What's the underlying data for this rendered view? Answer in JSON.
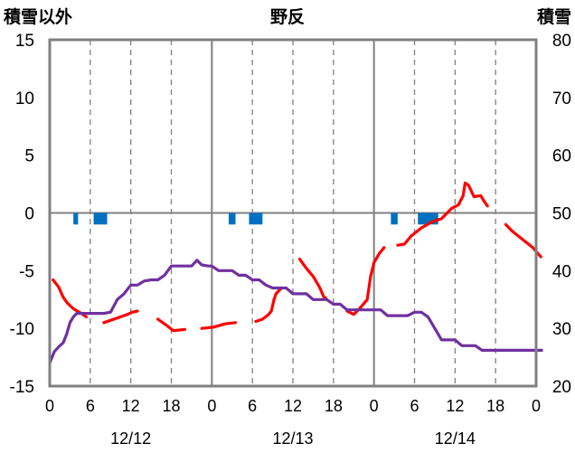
{
  "chart_data": {
    "type": "line",
    "title": "野反",
    "left_axis_label": "積雪以外",
    "right_axis_label": "積雪",
    "y_left": {
      "min": -15,
      "max": 15,
      "ticks": [
        "15",
        "10",
        "5",
        "0",
        "-5",
        "-10",
        "-15"
      ]
    },
    "y_right": {
      "min": 20,
      "max": 80,
      "ticks": [
        "80",
        "70",
        "60",
        "50",
        "40",
        "30",
        "20"
      ]
    },
    "x_hours": {
      "min": 0,
      "max": 72
    },
    "x_tick_labels": [
      "0",
      "6",
      "12",
      "18",
      "0",
      "6",
      "12",
      "18",
      "0",
      "6",
      "12",
      "18",
      "0"
    ],
    "dates": [
      "12/12",
      "12/13",
      "12/14"
    ],
    "grid": "dashed at 6/18h, solid at 0/24/48h",
    "colors": {
      "temperature": "#ff0000",
      "snow_depth": "#7030a0",
      "precipitation": "#0070c0",
      "axis": "#808080"
    },
    "series": [
      {
        "axis": "left",
        "style": "dashed-line",
        "segments": [
          [
            [
              0.5,
              -5.8
            ],
            [
              1.3,
              -6.4
            ],
            [
              2,
              -7.3
            ],
            [
              2.6,
              -7.8
            ],
            [
              3.5,
              -8.3
            ],
            [
              4.7,
              -8.7
            ],
            [
              5.4,
              -9.0
            ]
          ],
          [
            [
              8,
              -9.5
            ],
            [
              9.5,
              -9.2
            ],
            [
              10.5,
              -9.0
            ],
            [
              11.5,
              -8.8
            ],
            [
              12.2,
              -8.6
            ],
            [
              13,
              -8.5
            ]
          ],
          [
            [
              16,
              -9.2
            ],
            [
              17.2,
              -9.7
            ],
            [
              18.3,
              -10.2
            ],
            [
              20,
              -10.1
            ]
          ],
          [
            [
              22.5,
              -10.0
            ],
            [
              24.2,
              -9.9
            ],
            [
              26,
              -9.6
            ],
            [
              27.5,
              -9.5
            ]
          ],
          [
            [
              30.5,
              -9.4
            ],
            [
              31.5,
              -9.2
            ],
            [
              32.4,
              -8.8
            ],
            [
              32.8,
              -8.5
            ],
            [
              33.2,
              -7.5
            ],
            [
              33.5,
              -7.0
            ],
            [
              34.3,
              -6.5
            ]
          ],
          [
            [
              37,
              -4.0
            ],
            [
              38,
              -4.8
            ],
            [
              39,
              -5.5
            ],
            [
              40,
              -6.5
            ],
            [
              40.5,
              -7.2
            ],
            [
              41,
              -7.5
            ]
          ],
          [
            [
              44,
              -8.5
            ],
            [
              45,
              -8.8
            ],
            [
              46,
              -8.2
            ],
            [
              47,
              -7.5
            ],
            [
              47.5,
              -5.5
            ],
            [
              48,
              -4.3
            ],
            [
              48.8,
              -3.5
            ],
            [
              49.5,
              -3.0
            ]
          ],
          [
            [
              51.5,
              -2.8
            ],
            [
              52.5,
              -2.7
            ],
            [
              53.5,
              -2.0
            ],
            [
              55,
              -1.3
            ],
            [
              56.5,
              -0.8
            ],
            [
              58,
              -0.5
            ],
            [
              59.5,
              0.4
            ],
            [
              60.5,
              0.7
            ],
            [
              61.2,
              1.5
            ],
            [
              61.5,
              2.6
            ],
            [
              62,
              2.4
            ],
            [
              62.8,
              1.4
            ],
            [
              63.8,
              1.5
            ],
            [
              64.3,
              1.0
            ],
            [
              64.8,
              0.6
            ]
          ],
          [
            [
              67.5,
              -1.0
            ],
            [
              68.5,
              -1.6
            ],
            [
              70,
              -2.3
            ],
            [
              71.5,
              -3.0
            ],
            [
              72.7,
              -3.8
            ]
          ]
        ]
      },
      {
        "axis": "right",
        "style": "solid-line",
        "points": [
          [
            0,
            24
          ],
          [
            0.7,
            26
          ],
          [
            1.5,
            27
          ],
          [
            2,
            27.5
          ],
          [
            2.5,
            29
          ],
          [
            3,
            31
          ],
          [
            3.5,
            32
          ],
          [
            4,
            32.6
          ],
          [
            6,
            32.6
          ],
          [
            7,
            32.6
          ],
          [
            8,
            32.6
          ],
          [
            9,
            32.8
          ],
          [
            10,
            35
          ],
          [
            11,
            36
          ],
          [
            12,
            37.5
          ],
          [
            13,
            37.5
          ],
          [
            14,
            38.2
          ],
          [
            15,
            38.4
          ],
          [
            16,
            38.4
          ],
          [
            17,
            39.2
          ],
          [
            18,
            40.8
          ],
          [
            19,
            40.8
          ],
          [
            20,
            40.8
          ],
          [
            21,
            40.8
          ],
          [
            21.8,
            41.8
          ],
          [
            22.5,
            41
          ],
          [
            23.5,
            40.8
          ],
          [
            24,
            40.8
          ],
          [
            25,
            40
          ],
          [
            26,
            40
          ],
          [
            27,
            40
          ],
          [
            28,
            39.2
          ],
          [
            29,
            39.2
          ],
          [
            30,
            38.4
          ],
          [
            31,
            38.4
          ],
          [
            32,
            37.5
          ],
          [
            33,
            37
          ],
          [
            34,
            37
          ],
          [
            35,
            37
          ],
          [
            36,
            36
          ],
          [
            37,
            36
          ],
          [
            38,
            36
          ],
          [
            39,
            35
          ],
          [
            40,
            35
          ],
          [
            41,
            35
          ],
          [
            42,
            34.2
          ],
          [
            43,
            34.2
          ],
          [
            44,
            33.2
          ],
          [
            45,
            33.2
          ],
          [
            46,
            33.2
          ],
          [
            47,
            33.2
          ],
          [
            48,
            33.2
          ],
          [
            49,
            33.2
          ],
          [
            50,
            32.2
          ],
          [
            51,
            32.2
          ],
          [
            52,
            32.2
          ],
          [
            53,
            32.2
          ],
          [
            54,
            32.8
          ],
          [
            55,
            32.8
          ],
          [
            56,
            32
          ],
          [
            57,
            30
          ],
          [
            58,
            28
          ],
          [
            59,
            28
          ],
          [
            60,
            28
          ],
          [
            61,
            27
          ],
          [
            62,
            27
          ],
          [
            63,
            27
          ],
          [
            64,
            26.2
          ],
          [
            65,
            26.2
          ],
          [
            66,
            26.2
          ],
          [
            67,
            26.2
          ],
          [
            68,
            26.2
          ],
          [
            69,
            26.2
          ],
          [
            70,
            26.2
          ],
          [
            71,
            26.2
          ],
          [
            72,
            26.2
          ],
          [
            73,
            26.2
          ]
        ]
      },
      {
        "axis": "left",
        "style": "bars",
        "bars": [
          [
            3.5,
            4.2
          ],
          [
            6.5,
            8.5
          ],
          [
            26.5,
            27.5
          ],
          [
            29.5,
            31.5
          ],
          [
            50.5,
            51.5
          ],
          [
            54.5,
            57.5
          ]
        ],
        "value": -1.0
      }
    ]
  }
}
